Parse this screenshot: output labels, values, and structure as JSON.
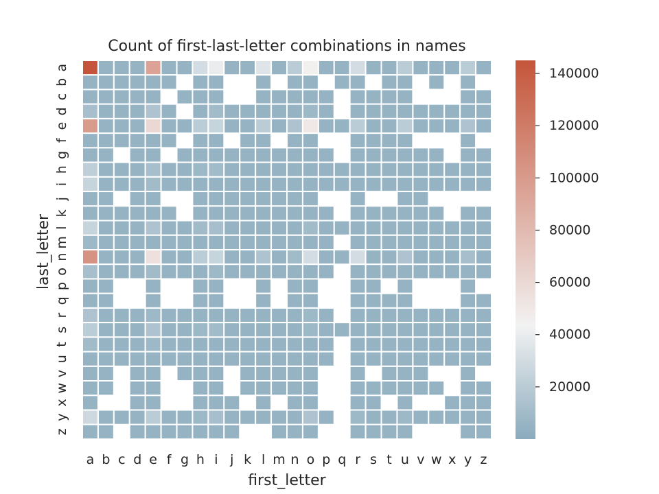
{
  "chart_data": {
    "type": "heatmap",
    "title": "Count of first-last-letter combinations in names",
    "xlabel": "first_letter",
    "ylabel": "last_letter",
    "x_categories": [
      "a",
      "b",
      "c",
      "d",
      "e",
      "f",
      "g",
      "h",
      "i",
      "j",
      "k",
      "l",
      "m",
      "n",
      "o",
      "p",
      "q",
      "r",
      "s",
      "t",
      "u",
      "v",
      "w",
      "x",
      "y",
      "z"
    ],
    "y_categories": [
      "a",
      "b",
      "c",
      "d",
      "e",
      "f",
      "g",
      "h",
      "i",
      "j",
      "k",
      "l",
      "m",
      "n",
      "o",
      "p",
      "q",
      "r",
      "s",
      "t",
      "u",
      "v",
      "w",
      "x",
      "y",
      "z"
    ],
    "value_range": [
      0,
      145000
    ],
    "colorbar_ticks": [
      20000,
      40000,
      60000,
      80000,
      100000,
      120000,
      140000
    ],
    "colormap": {
      "low": "#8aabbd",
      "mid": "#f2f2f2",
      "high": "#c4553a"
    },
    "missing_cells_blank": true,
    "grid_lines": "white",
    "values": [
      [
        145000,
        5000,
        5000,
        5000,
        95000,
        5000,
        5000,
        30000,
        40000,
        5000,
        5000,
        35000,
        5000,
        20000,
        45000,
        5000,
        5000,
        30000,
        5000,
        5000,
        20000,
        5000,
        5000,
        5000,
        20000,
        5000
      ],
      [
        5000,
        5000,
        5000,
        5000,
        5000,
        5000,
        null,
        5000,
        5000,
        null,
        null,
        5000,
        null,
        5000,
        5000,
        null,
        5000,
        5000,
        null,
        5000,
        5000,
        null,
        5000,
        null,
        5000,
        null
      ],
      [
        5000,
        5000,
        5000,
        5000,
        5000,
        null,
        5000,
        5000,
        5000,
        null,
        null,
        5000,
        5000,
        5000,
        5000,
        5000,
        null,
        5000,
        5000,
        5000,
        5000,
        null,
        null,
        null,
        5000,
        5000
      ],
      [
        12000,
        5000,
        5000,
        5000,
        15000,
        5000,
        null,
        5000,
        10000,
        5000,
        5000,
        5000,
        5000,
        5000,
        8000,
        5000,
        null,
        5000,
        5000,
        5000,
        5000,
        5000,
        5000,
        5000,
        5000,
        5000
      ],
      [
        100000,
        5000,
        5000,
        5000,
        60000,
        5000,
        5000,
        20000,
        25000,
        5000,
        5000,
        20000,
        5000,
        15000,
        50000,
        5000,
        5000,
        20000,
        5000,
        5000,
        20000,
        5000,
        5000,
        5000,
        15000,
        5000
      ],
      [
        5000,
        5000,
        5000,
        5000,
        5000,
        5000,
        null,
        5000,
        5000,
        null,
        5000,
        5000,
        null,
        5000,
        5000,
        null,
        null,
        5000,
        5000,
        5000,
        5000,
        null,
        null,
        null,
        5000,
        null
      ],
      [
        5000,
        5000,
        null,
        5000,
        5000,
        null,
        5000,
        5000,
        5000,
        5000,
        5000,
        5000,
        5000,
        5000,
        5000,
        5000,
        null,
        5000,
        5000,
        5000,
        5000,
        5000,
        5000,
        null,
        5000,
        5000
      ],
      [
        22000,
        5000,
        5000,
        5000,
        12000,
        5000,
        5000,
        8000,
        10000,
        5000,
        5000,
        5000,
        5000,
        5000,
        5000,
        5000,
        5000,
        5000,
        5000,
        5000,
        5000,
        5000,
        5000,
        5000,
        5000,
        5000
      ],
      [
        25000,
        5000,
        5000,
        5000,
        10000,
        5000,
        5000,
        5000,
        5000,
        5000,
        5000,
        5000,
        5000,
        5000,
        5000,
        5000,
        5000,
        5000,
        5000,
        5000,
        5000,
        5000,
        5000,
        5000,
        5000,
        5000
      ],
      [
        5000,
        5000,
        null,
        5000,
        5000,
        null,
        null,
        5000,
        5000,
        5000,
        5000,
        5000,
        5000,
        5000,
        5000,
        null,
        null,
        5000,
        null,
        null,
        5000,
        5000,
        null,
        null,
        null,
        null
      ],
      [
        5000,
        5000,
        5000,
        5000,
        5000,
        5000,
        null,
        5000,
        5000,
        5000,
        5000,
        5000,
        5000,
        5000,
        5000,
        5000,
        null,
        5000,
        5000,
        5000,
        5000,
        5000,
        5000,
        null,
        5000,
        5000
      ],
      [
        25000,
        5000,
        5000,
        5000,
        15000,
        5000,
        5000,
        10000,
        12000,
        5000,
        5000,
        5000,
        5000,
        5000,
        10000,
        5000,
        5000,
        5000,
        5000,
        5000,
        5000,
        5000,
        5000,
        5000,
        5000,
        5000
      ],
      [
        8000,
        5000,
        5000,
        5000,
        5000,
        5000,
        5000,
        5000,
        5000,
        5000,
        5000,
        5000,
        5000,
        5000,
        5000,
        5000,
        null,
        5000,
        5000,
        5000,
        5000,
        5000,
        5000,
        5000,
        5000,
        5000
      ],
      [
        105000,
        5000,
        5000,
        5000,
        55000,
        5000,
        5000,
        20000,
        25000,
        5000,
        5000,
        15000,
        5000,
        10000,
        30000,
        5000,
        5000,
        30000,
        5000,
        5000,
        15000,
        5000,
        5000,
        5000,
        12000,
        5000
      ],
      [
        12000,
        5000,
        5000,
        5000,
        10000,
        5000,
        5000,
        5000,
        8000,
        5000,
        5000,
        5000,
        5000,
        5000,
        5000,
        5000,
        null,
        5000,
        5000,
        5000,
        5000,
        5000,
        5000,
        5000,
        5000,
        5000
      ],
      [
        5000,
        5000,
        null,
        null,
        5000,
        null,
        null,
        5000,
        5000,
        null,
        null,
        5000,
        null,
        5000,
        5000,
        null,
        null,
        5000,
        5000,
        null,
        5000,
        null,
        null,
        null,
        5000,
        null
      ],
      [
        5000,
        5000,
        null,
        null,
        5000,
        null,
        null,
        5000,
        5000,
        null,
        null,
        5000,
        null,
        5000,
        5000,
        null,
        null,
        5000,
        5000,
        5000,
        5000,
        null,
        null,
        null,
        5000,
        5000
      ],
      [
        15000,
        5000,
        5000,
        5000,
        8000,
        5000,
        5000,
        5000,
        5000,
        5000,
        5000,
        5000,
        5000,
        5000,
        8000,
        5000,
        null,
        5000,
        5000,
        5000,
        5000,
        5000,
        5000,
        5000,
        5000,
        5000
      ],
      [
        20000,
        5000,
        5000,
        5000,
        15000,
        5000,
        5000,
        8000,
        10000,
        5000,
        5000,
        5000,
        5000,
        5000,
        8000,
        5000,
        5000,
        5000,
        5000,
        5000,
        5000,
        5000,
        5000,
        5000,
        5000,
        5000
      ],
      [
        10000,
        5000,
        5000,
        5000,
        8000,
        5000,
        5000,
        5000,
        5000,
        5000,
        5000,
        5000,
        5000,
        5000,
        5000,
        5000,
        null,
        5000,
        5000,
        5000,
        5000,
        5000,
        5000,
        5000,
        5000,
        5000
      ],
      [
        5000,
        5000,
        5000,
        5000,
        5000,
        5000,
        5000,
        5000,
        5000,
        5000,
        5000,
        5000,
        5000,
        5000,
        5000,
        5000,
        null,
        5000,
        5000,
        5000,
        5000,
        5000,
        5000,
        5000,
        5000,
        5000
      ],
      [
        5000,
        5000,
        null,
        5000,
        5000,
        null,
        5000,
        5000,
        5000,
        null,
        5000,
        5000,
        5000,
        5000,
        5000,
        null,
        null,
        5000,
        null,
        5000,
        5000,
        5000,
        null,
        null,
        5000,
        null
      ],
      [
        5000,
        5000,
        null,
        5000,
        5000,
        null,
        null,
        5000,
        5000,
        null,
        5000,
        5000,
        5000,
        5000,
        5000,
        null,
        null,
        5000,
        5000,
        5000,
        5000,
        5000,
        5000,
        null,
        5000,
        5000
      ],
      [
        5000,
        null,
        null,
        5000,
        5000,
        null,
        null,
        5000,
        5000,
        5000,
        null,
        5000,
        null,
        5000,
        5000,
        null,
        null,
        5000,
        5000,
        null,
        5000,
        null,
        null,
        5000,
        5000,
        5000
      ],
      [
        28000,
        5000,
        5000,
        5000,
        20000,
        5000,
        5000,
        8000,
        12000,
        5000,
        5000,
        5000,
        5000,
        5000,
        15000,
        5000,
        null,
        8000,
        5000,
        5000,
        8000,
        5000,
        5000,
        5000,
        5000,
        5000
      ],
      [
        5000,
        5000,
        null,
        5000,
        5000,
        5000,
        5000,
        5000,
        5000,
        5000,
        null,
        null,
        5000,
        5000,
        5000,
        null,
        null,
        5000,
        5000,
        5000,
        5000,
        null,
        null,
        null,
        5000,
        5000
      ]
    ]
  }
}
